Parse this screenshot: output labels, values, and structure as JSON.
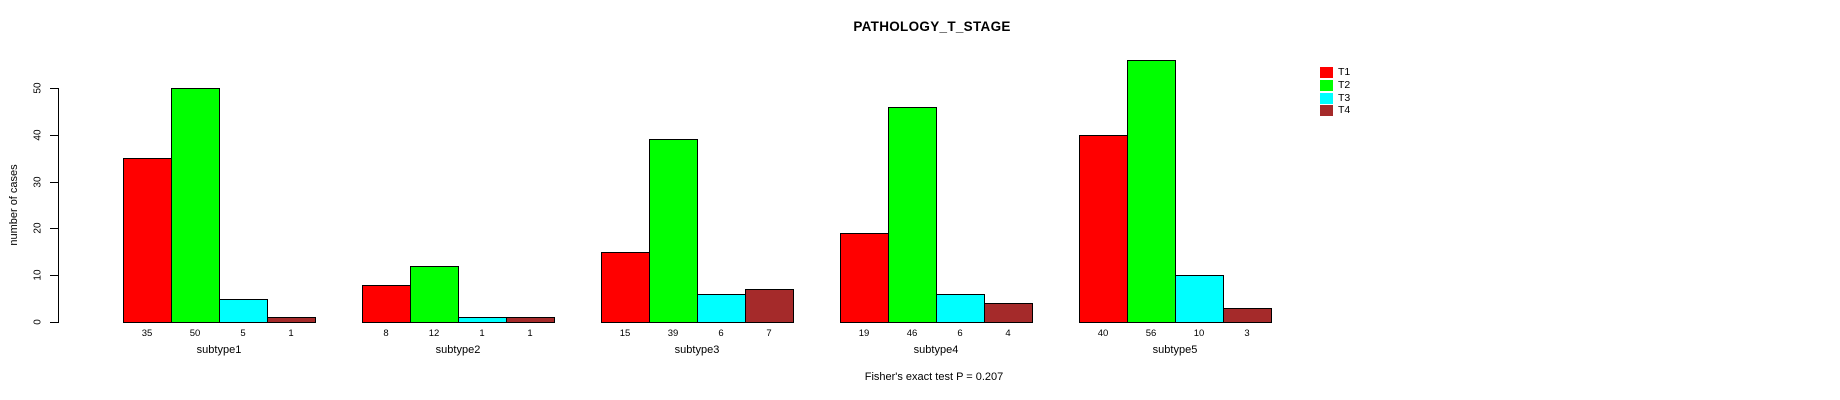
{
  "chart_data": {
    "type": "bar",
    "title": "PATHOLOGY_T_STAGE",
    "xlabel": "",
    "ylabel": "number of cases",
    "annotation": "Fisher's exact test P = 0.207",
    "ylim": [
      0,
      50
    ],
    "yticks": [
      0,
      10,
      20,
      30,
      40,
      50
    ],
    "grid": false,
    "legend_position": "top-right",
    "value_labels_shown": true,
    "bar_border_color": "#000000",
    "categories": [
      "subtype1",
      "subtype2",
      "subtype3",
      "subtype4",
      "subtype5"
    ],
    "series": [
      {
        "name": "T1",
        "color": "#ff0000",
        "values": [
          35,
          8,
          15,
          19,
          40
        ]
      },
      {
        "name": "T2",
        "color": "#00ff00",
        "values": [
          50,
          12,
          39,
          46,
          56
        ]
      },
      {
        "name": "T3",
        "color": "#00ffff",
        "values": [
          5,
          1,
          6,
          6,
          10
        ]
      },
      {
        "name": "T4",
        "color": "#a52a2a",
        "values": [
          1,
          1,
          7,
          4,
          3
        ]
      }
    ]
  }
}
